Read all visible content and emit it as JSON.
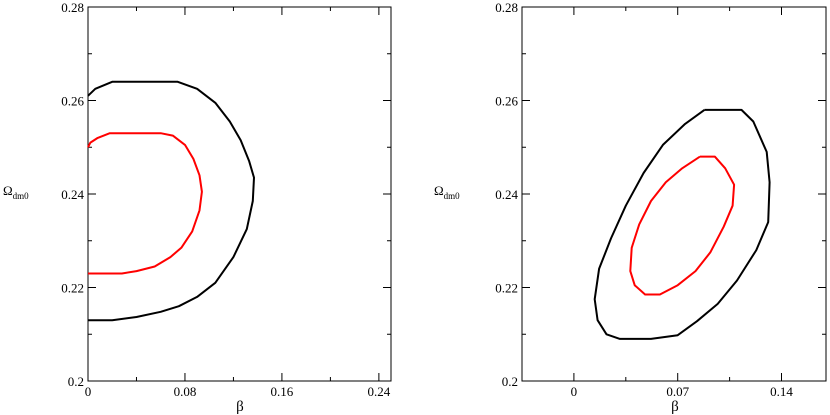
{
  "chart_data": [
    {
      "type": "line",
      "title": "",
      "xlabel": "β",
      "ylabel_main": "Ω",
      "ylabel_sub": "dm0",
      "xlim": [
        0,
        0.25
      ],
      "ylim": [
        0.2,
        0.28
      ],
      "xticks": [
        0,
        0.08,
        0.16,
        0.24
      ],
      "xtick_labels": [
        "0",
        "0.08",
        "0.16",
        "0.24"
      ],
      "yticks": [
        0.2,
        0.22,
        0.24,
        0.26,
        0.28
      ],
      "ytick_labels": [
        "0.2",
        "0.22",
        "0.24",
        "0.26",
        "0.28"
      ],
      "grid": false,
      "series": [
        {
          "color": "#ff0000",
          "points": [
            [
              0,
              0.25
            ],
            [
              0.002,
              0.251
            ],
            [
              0.008,
              0.252
            ],
            [
              0.018,
              0.253
            ],
            [
              0.06,
              0.253
            ],
            [
              0.07,
              0.2525
            ],
            [
              0.08,
              0.2505
            ],
            [
              0.087,
              0.2475
            ],
            [
              0.092,
              0.244
            ],
            [
              0.094,
              0.2405
            ],
            [
              0.092,
              0.2365
            ],
            [
              0.086,
              0.232
            ],
            [
              0.077,
              0.2285
            ],
            [
              0.068,
              0.2265
            ],
            [
              0.055,
              0.2245
            ],
            [
              0.04,
              0.2235
            ],
            [
              0.028,
              0.223
            ],
            [
              0,
              0.223
            ]
          ]
        },
        {
          "color": "#000000",
          "points": [
            [
              0,
              0.261
            ],
            [
              0.006,
              0.2625
            ],
            [
              0.02,
              0.264
            ],
            [
              0.074,
              0.264
            ],
            [
              0.09,
              0.2625
            ],
            [
              0.105,
              0.2595
            ],
            [
              0.117,
              0.2555
            ],
            [
              0.126,
              0.2515
            ],
            [
              0.133,
              0.247
            ],
            [
              0.137,
              0.2435
            ],
            [
              0.136,
              0.2385
            ],
            [
              0.131,
              0.2325
            ],
            [
              0.12,
              0.2265
            ],
            [
              0.105,
              0.221
            ],
            [
              0.09,
              0.218
            ],
            [
              0.075,
              0.216
            ],
            [
              0.06,
              0.2148
            ],
            [
              0.04,
              0.2137
            ],
            [
              0.02,
              0.213
            ],
            [
              0,
              0.213
            ]
          ]
        }
      ]
    },
    {
      "type": "line",
      "title": "",
      "xlabel": "β",
      "ylabel_main": "Ω",
      "ylabel_sub": "dm0",
      "xlim": [
        -0.035,
        0.17
      ],
      "ylim": [
        0.2,
        0.28
      ],
      "xticks": [
        0,
        0.07,
        0.14
      ],
      "xtick_labels": [
        "0",
        "0.07",
        "0.14"
      ],
      "yticks": [
        0.2,
        0.22,
        0.24,
        0.26,
        0.28
      ],
      "ytick_labels": [
        "0.2",
        "0.22",
        "0.24",
        "0.26",
        "0.28"
      ],
      "grid": false,
      "series": [
        {
          "color": "#ff0000",
          "points": [
            [
              0.085,
              0.248
            ],
            [
              0.095,
              0.248
            ],
            [
              0.102,
              0.2455
            ],
            [
              0.108,
              0.242
            ],
            [
              0.107,
              0.2375
            ],
            [
              0.101,
              0.233
            ],
            [
              0.092,
              0.2275
            ],
            [
              0.082,
              0.2235
            ],
            [
              0.07,
              0.2205
            ],
            [
              0.058,
              0.2185
            ],
            [
              0.048,
              0.2185
            ],
            [
              0.041,
              0.2205
            ],
            [
              0.038,
              0.2235
            ],
            [
              0.039,
              0.2285
            ],
            [
              0.044,
              0.2335
            ],
            [
              0.052,
              0.2385
            ],
            [
              0.062,
              0.2425
            ],
            [
              0.073,
              0.2455
            ],
            [
              0.085,
              0.248
            ]
          ]
        },
        {
          "color": "#000000",
          "points": [
            [
              0.088,
              0.258
            ],
            [
              0.113,
              0.258
            ],
            [
              0.121,
              0.2555
            ],
            [
              0.13,
              0.249
            ],
            [
              0.132,
              0.2425
            ],
            [
              0.131,
              0.234
            ],
            [
              0.123,
              0.228
            ],
            [
              0.11,
              0.2215
            ],
            [
              0.097,
              0.2165
            ],
            [
              0.083,
              0.2128
            ],
            [
              0.07,
              0.2098
            ],
            [
              0.052,
              0.209
            ],
            [
              0.031,
              0.209
            ],
            [
              0.022,
              0.21
            ],
            [
              0.016,
              0.213
            ],
            [
              0.014,
              0.2175
            ],
            [
              0.017,
              0.224
            ],
            [
              0.025,
              0.2305
            ],
            [
              0.035,
              0.2375
            ],
            [
              0.047,
              0.2445
            ],
            [
              0.06,
              0.2505
            ],
            [
              0.075,
              0.255
            ],
            [
              0.088,
              0.258
            ]
          ]
        }
      ]
    }
  ]
}
